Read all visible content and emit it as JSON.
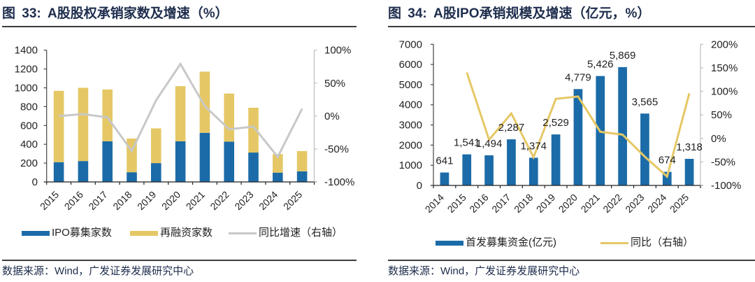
{
  "chart_data": [
    {
      "type": "bar",
      "subtype": "stacked-bar-with-line",
      "title": "图 33: A股股权承销家数及增速（%）",
      "categories": [
        "2015",
        "2016",
        "2017",
        "2018",
        "2019",
        "2020",
        "2021",
        "2022",
        "2023",
        "2024",
        "2025"
      ],
      "series": [
        {
          "name": "IPO募集家数",
          "type": "bar",
          "axis": "left",
          "color": "#1B6BA8",
          "values": [
            210,
            222,
            432,
            103,
            200,
            432,
            522,
            428,
            312,
            99,
            113
          ]
        },
        {
          "name": "再融资家数",
          "type": "bar",
          "axis": "left",
          "color": "#E5C865",
          "values": [
            758,
            778,
            550,
            358,
            369,
            586,
            650,
            511,
            476,
            197,
            215
          ]
        },
        {
          "name": "同比增速（右轴）",
          "type": "line",
          "axis": "right",
          "color": "#C8C8C8",
          "values": [
            0,
            3,
            -2,
            -53,
            24,
            79,
            15,
            -20,
            -16,
            -62,
            11
          ]
        }
      ],
      "y_left": {
        "min": 0,
        "max": 1400,
        "ticks": [
          0,
          200,
          400,
          600,
          800,
          1000,
          1200,
          1400
        ],
        "tick_labels": [
          "0",
          "200",
          "400",
          "600",
          "800",
          "1000",
          "1200",
          "1400"
        ]
      },
      "y_right": {
        "min": -100,
        "max": 100,
        "ticks": [
          -100,
          -50,
          0,
          50,
          100
        ],
        "tick_labels": [
          "-100%",
          "-50%",
          "0%",
          "50%",
          "100%"
        ]
      },
      "xlabel": "",
      "ylabel": "",
      "grid": false,
      "legend_position": "bottom",
      "source": "数据来源：Wind，广发证券发展研究中心"
    },
    {
      "type": "bar",
      "subtype": "bar-with-line",
      "title": "图 34: A股IPO承销规模及增速（亿元，%）",
      "categories": [
        "2014",
        "2015",
        "2016",
        "2017",
        "2018",
        "2019",
        "2020",
        "2021",
        "2022",
        "2023",
        "2024",
        "2025"
      ],
      "series": [
        {
          "name": "首发募集资金(亿元)",
          "type": "bar",
          "axis": "left",
          "color": "#1B6BA8",
          "values": [
            641,
            1541,
            1494,
            2287,
            1374,
            2529,
            4779,
            5426,
            5869,
            3565,
            674,
            1318
          ],
          "data_labels": [
            "641",
            "1,541",
            "1,494",
            "2,287",
            "1,374",
            "2,529",
            "4,779",
            "5,426",
            "5,869",
            "3,565",
            "674",
            "1,318"
          ]
        },
        {
          "name": "同比（右轴）",
          "type": "line",
          "axis": "right",
          "color": "#E5C865",
          "values": [
            null,
            140,
            -3,
            53,
            -40,
            84,
            89,
            14,
            8,
            -39,
            -81,
            96
          ]
        }
      ],
      "y_left": {
        "min": 0,
        "max": 7000,
        "ticks": [
          0,
          1000,
          2000,
          3000,
          4000,
          5000,
          6000,
          7000
        ],
        "tick_labels": [
          "0",
          "1000",
          "2000",
          "3000",
          "4000",
          "5000",
          "6000",
          "7000"
        ]
      },
      "y_right": {
        "min": -100,
        "max": 200,
        "ticks": [
          -100,
          -50,
          0,
          50,
          100,
          150,
          200
        ],
        "tick_labels": [
          "-100%",
          "-50%",
          "0%",
          "50%",
          "100%",
          "150%",
          "200%"
        ]
      },
      "xlabel": "",
      "ylabel": "",
      "grid": false,
      "legend_position": "bottom",
      "source": "数据来源：Wind，广发证券发展研究中心"
    }
  ]
}
